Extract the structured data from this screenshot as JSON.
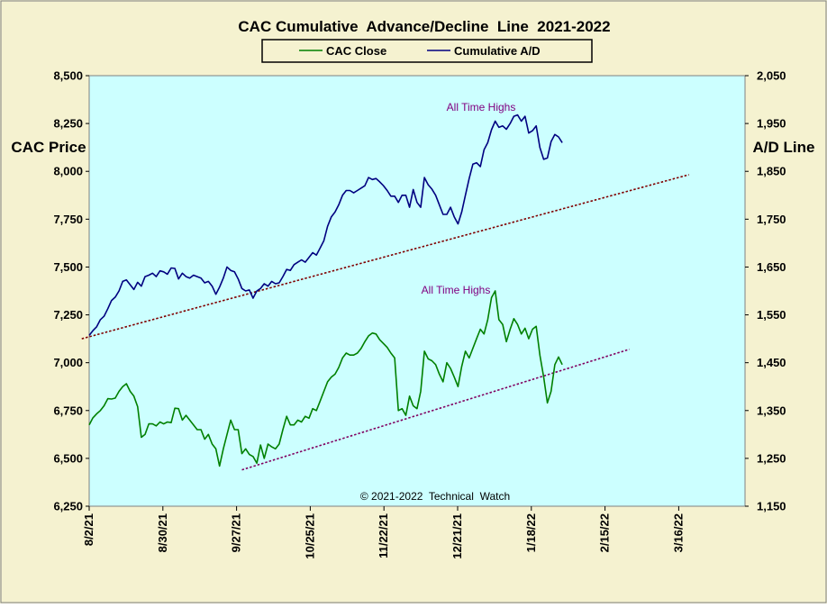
{
  "chart_data": {
    "type": "line",
    "title": "CAC Cumulative  Advance/Decline  Line  2021-2022",
    "ylabel_left": "CAC Price",
    "ylabel_right": "A/D Line",
    "copyright": "© 2021-2022  Technical  Watch",
    "ylim_left": [
      6250,
      8500
    ],
    "ylim_right": [
      1150,
      2050
    ],
    "y_ticks_left": [
      "6,250",
      "6,500",
      "6,750",
      "7,000",
      "7,250",
      "7,500",
      "7,750",
      "8,000",
      "8,250",
      "8,500"
    ],
    "y_ticks_right": [
      "1,150",
      "1,250",
      "1,350",
      "1,450",
      "1,550",
      "1,650",
      "1,750",
      "1,850",
      "1,950",
      "2,050"
    ],
    "x_ticks": [
      "8/2/21",
      "8/30/21",
      "9/27/21",
      "10/25/21",
      "11/22/21",
      "12/21/21",
      "1/18/22",
      "2/15/22",
      "3/16/22"
    ],
    "grid": false,
    "legend_position": "top-center",
    "colors": {
      "background_outer": "#f5f2d0",
      "plot_area": "#ccffff",
      "cac_close": "#008000",
      "cumulative_ad": "#000080",
      "trendline": "#800000",
      "annotation": "#800080"
    },
    "series": [
      {
        "name": "CAC Close",
        "axis": "left",
        "points": [
          [
            0,
            6675
          ],
          [
            1,
            6712
          ],
          [
            2,
            6733
          ],
          [
            3,
            6750
          ],
          [
            4,
            6775
          ],
          [
            5,
            6812
          ],
          [
            6,
            6810
          ],
          [
            7,
            6815
          ],
          [
            8,
            6850
          ],
          [
            9,
            6875
          ],
          [
            10,
            6890
          ],
          [
            11,
            6850
          ],
          [
            12,
            6825
          ],
          [
            13,
            6770
          ],
          [
            14,
            6610
          ],
          [
            15,
            6625
          ],
          [
            16,
            6680
          ],
          [
            17,
            6680
          ],
          [
            18,
            6670
          ],
          [
            19,
            6690
          ],
          [
            20,
            6680
          ],
          [
            21,
            6690
          ],
          [
            22,
            6687
          ],
          [
            23,
            6762
          ],
          [
            24,
            6760
          ],
          [
            25,
            6700
          ],
          [
            26,
            6725
          ],
          [
            27,
            6700
          ],
          [
            28,
            6675
          ],
          [
            29,
            6650
          ],
          [
            30,
            6650
          ],
          [
            31,
            6600
          ],
          [
            32,
            6625
          ],
          [
            33,
            6575
          ],
          [
            34,
            6550
          ],
          [
            35,
            6460
          ],
          [
            36,
            6550
          ],
          [
            37,
            6625
          ],
          [
            38,
            6700
          ],
          [
            39,
            6650
          ],
          [
            40,
            6650
          ],
          [
            41,
            6525
          ],
          [
            42,
            6550
          ],
          [
            43,
            6520
          ],
          [
            44,
            6510
          ],
          [
            45,
            6475
          ],
          [
            46,
            6570
          ],
          [
            47,
            6500
          ],
          [
            48,
            6575
          ],
          [
            49,
            6560
          ],
          [
            50,
            6550
          ],
          [
            51,
            6575
          ],
          [
            52,
            6650
          ],
          [
            53,
            6720
          ],
          [
            54,
            6675
          ],
          [
            55,
            6675
          ],
          [
            56,
            6700
          ],
          [
            57,
            6690
          ],
          [
            58,
            6720
          ],
          [
            59,
            6710
          ],
          [
            60,
            6760
          ],
          [
            61,
            6750
          ],
          [
            62,
            6800
          ],
          [
            63,
            6850
          ],
          [
            64,
            6900
          ],
          [
            65,
            6925
          ],
          [
            66,
            6940
          ],
          [
            67,
            6975
          ],
          [
            68,
            7025
          ],
          [
            69,
            7050
          ],
          [
            70,
            7040
          ],
          [
            71,
            7040
          ],
          [
            72,
            7050
          ],
          [
            73,
            7075
          ],
          [
            74,
            7110
          ],
          [
            75,
            7140
          ],
          [
            76,
            7155
          ],
          [
            77,
            7150
          ],
          [
            78,
            7120
          ],
          [
            79,
            7100
          ],
          [
            80,
            7080
          ],
          [
            81,
            7050
          ],
          [
            82,
            7025
          ],
          [
            83,
            6750
          ],
          [
            84,
            6760
          ],
          [
            85,
            6725
          ],
          [
            86,
            6825
          ],
          [
            87,
            6775
          ],
          [
            88,
            6760
          ],
          [
            89,
            6850
          ],
          [
            90,
            7060
          ],
          [
            91,
            7020
          ],
          [
            92,
            7010
          ],
          [
            93,
            6990
          ],
          [
            94,
            6940
          ],
          [
            95,
            6900
          ],
          [
            96,
            7000
          ],
          [
            97,
            6970
          ],
          [
            98,
            6925
          ],
          [
            99,
            6875
          ],
          [
            100,
            6980
          ],
          [
            101,
            7060
          ],
          [
            102,
            7025
          ],
          [
            103,
            7075
          ],
          [
            104,
            7125
          ],
          [
            105,
            7175
          ],
          [
            106,
            7150
          ],
          [
            107,
            7225
          ],
          [
            108,
            7340
          ],
          [
            109,
            7375
          ],
          [
            110,
            7225
          ],
          [
            111,
            7200
          ],
          [
            112,
            7110
          ],
          [
            113,
            7175
          ],
          [
            114,
            7230
          ],
          [
            115,
            7200
          ],
          [
            116,
            7150
          ],
          [
            117,
            7180
          ],
          [
            118,
            7125
          ],
          [
            119,
            7175
          ],
          [
            120,
            7190
          ],
          [
            121,
            7040
          ],
          [
            122,
            6925
          ],
          [
            123,
            6790
          ],
          [
            124,
            6850
          ],
          [
            125,
            6990
          ],
          [
            126,
            7030
          ],
          [
            127,
            6990
          ]
        ]
      },
      {
        "name": "Cumulative A/D",
        "axis": "right",
        "points": [
          [
            0,
            1507
          ],
          [
            1,
            1517
          ],
          [
            2,
            1525
          ],
          [
            3,
            1540
          ],
          [
            4,
            1547
          ],
          [
            5,
            1563
          ],
          [
            6,
            1580
          ],
          [
            7,
            1587
          ],
          [
            8,
            1600
          ],
          [
            9,
            1620
          ],
          [
            10,
            1623
          ],
          [
            11,
            1613
          ],
          [
            12,
            1603
          ],
          [
            13,
            1618
          ],
          [
            14,
            1610
          ],
          [
            15,
            1630
          ],
          [
            16,
            1633
          ],
          [
            17,
            1637
          ],
          [
            18,
            1630
          ],
          [
            19,
            1642
          ],
          [
            20,
            1640
          ],
          [
            21,
            1635
          ],
          [
            22,
            1648
          ],
          [
            23,
            1647
          ],
          [
            24,
            1625
          ],
          [
            25,
            1637
          ],
          [
            26,
            1630
          ],
          [
            27,
            1627
          ],
          [
            28,
            1633
          ],
          [
            29,
            1630
          ],
          [
            30,
            1627
          ],
          [
            31,
            1617
          ],
          [
            32,
            1620
          ],
          [
            33,
            1610
          ],
          [
            34,
            1593
          ],
          [
            35,
            1608
          ],
          [
            36,
            1627
          ],
          [
            37,
            1650
          ],
          [
            38,
            1643
          ],
          [
            39,
            1640
          ],
          [
            40,
            1625
          ],
          [
            41,
            1605
          ],
          [
            42,
            1600
          ],
          [
            43,
            1602
          ],
          [
            44,
            1585
          ],
          [
            45,
            1600
          ],
          [
            46,
            1605
          ],
          [
            47,
            1615
          ],
          [
            48,
            1610
          ],
          [
            49,
            1620
          ],
          [
            50,
            1615
          ],
          [
            51,
            1617
          ],
          [
            52,
            1630
          ],
          [
            53,
            1645
          ],
          [
            54,
            1643
          ],
          [
            55,
            1655
          ],
          [
            56,
            1660
          ],
          [
            57,
            1665
          ],
          [
            58,
            1660
          ],
          [
            59,
            1670
          ],
          [
            60,
            1680
          ],
          [
            61,
            1675
          ],
          [
            62,
            1690
          ],
          [
            63,
            1705
          ],
          [
            64,
            1735
          ],
          [
            65,
            1755
          ],
          [
            66,
            1765
          ],
          [
            67,
            1780
          ],
          [
            68,
            1800
          ],
          [
            69,
            1810
          ],
          [
            70,
            1810
          ],
          [
            71,
            1805
          ],
          [
            72,
            1810
          ],
          [
            73,
            1815
          ],
          [
            74,
            1820
          ],
          [
            75,
            1837
          ],
          [
            76,
            1833
          ],
          [
            77,
            1835
          ],
          [
            78,
            1828
          ],
          [
            79,
            1820
          ],
          [
            80,
            1810
          ],
          [
            81,
            1798
          ],
          [
            82,
            1798
          ],
          [
            83,
            1785
          ],
          [
            84,
            1800
          ],
          [
            85,
            1800
          ],
          [
            86,
            1775
          ],
          [
            87,
            1812
          ],
          [
            88,
            1785
          ],
          [
            89,
            1775
          ],
          [
            90,
            1837
          ],
          [
            91,
            1822
          ],
          [
            92,
            1813
          ],
          [
            93,
            1800
          ],
          [
            94,
            1780
          ],
          [
            95,
            1760
          ],
          [
            96,
            1760
          ],
          [
            97,
            1775
          ],
          [
            98,
            1755
          ],
          [
            99,
            1740
          ],
          [
            100,
            1765
          ],
          [
            101,
            1800
          ],
          [
            102,
            1835
          ],
          [
            103,
            1865
          ],
          [
            104,
            1868
          ],
          [
            105,
            1860
          ],
          [
            106,
            1895
          ],
          [
            107,
            1910
          ],
          [
            108,
            1937
          ],
          [
            109,
            1955
          ],
          [
            110,
            1942
          ],
          [
            111,
            1945
          ],
          [
            112,
            1938
          ],
          [
            113,
            1950
          ],
          [
            114,
            1965
          ],
          [
            115,
            1968
          ],
          [
            116,
            1955
          ],
          [
            117,
            1965
          ],
          [
            118,
            1930
          ],
          [
            119,
            1935
          ],
          [
            120,
            1945
          ],
          [
            121,
            1900
          ],
          [
            122,
            1875
          ],
          [
            123,
            1878
          ],
          [
            124,
            1912
          ],
          [
            125,
            1927
          ],
          [
            126,
            1922
          ],
          [
            127,
            1910
          ]
        ]
      }
    ],
    "trendlines": [
      {
        "axis": "right",
        "from": [
          -2,
          1500
        ],
        "to": [
          161,
          1843
        ]
      },
      {
        "axis": "left",
        "from": [
          41,
          6440
        ],
        "to": [
          145,
          7070
        ]
      }
    ],
    "annotations": [
      {
        "text": "All Time Highs",
        "near_series": "Cumulative A/D"
      },
      {
        "text": "All Time Highs",
        "near_series": "CAC Close"
      }
    ]
  }
}
